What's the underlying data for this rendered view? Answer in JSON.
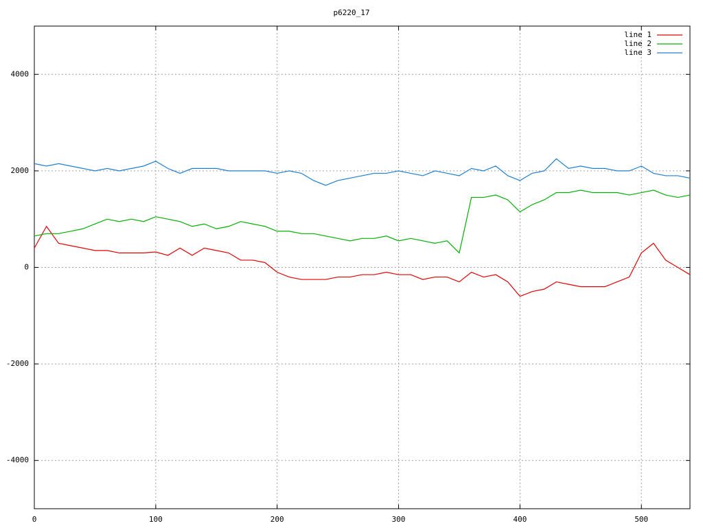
{
  "chart_data": {
    "type": "line",
    "title": "p6220_17",
    "x": [
      0,
      10,
      20,
      30,
      40,
      50,
      60,
      70,
      80,
      90,
      100,
      110,
      120,
      130,
      140,
      150,
      160,
      170,
      180,
      190,
      200,
      210,
      220,
      230,
      240,
      250,
      260,
      270,
      280,
      290,
      300,
      310,
      320,
      330,
      340,
      350,
      360,
      370,
      380,
      390,
      400,
      410,
      420,
      430,
      440,
      450,
      460,
      470,
      480,
      490,
      500,
      510,
      520,
      530,
      540
    ],
    "series": [
      {
        "name": "line 1",
        "color": "#e00000",
        "values": [
          400,
          850,
          500,
          450,
          400,
          350,
          350,
          300,
          300,
          300,
          320,
          250,
          400,
          250,
          400,
          350,
          300,
          150,
          150,
          100,
          -100,
          -200,
          -250,
          -250,
          -250,
          -200,
          -200,
          -150,
          -150,
          -100,
          -150,
          -150,
          -250,
          -200,
          -200,
          -300,
          -100,
          -200,
          -150,
          -300,
          -600,
          -500,
          -450,
          -300,
          -350,
          -400,
          -400,
          -400,
          -300,
          -200,
          300,
          500,
          150,
          0,
          -150
        ]
      },
      {
        "name": "line 2",
        "color": "#00b000",
        "values": [
          650,
          700,
          700,
          750,
          800,
          900,
          1000,
          950,
          1000,
          950,
          1050,
          1000,
          950,
          850,
          900,
          800,
          850,
          950,
          900,
          850,
          750,
          750,
          700,
          700,
          650,
          600,
          550,
          600,
          600,
          650,
          550,
          600,
          550,
          500,
          550,
          300,
          1450,
          1450,
          1500,
          1400,
          1150,
          1300,
          1400,
          1550,
          1550,
          1600,
          1550,
          1550,
          1550,
          1500,
          1550,
          1600,
          1500,
          1450,
          1500
        ]
      },
      {
        "name": "line 3",
        "color": "#1e7fd0",
        "values": [
          2150,
          2100,
          2150,
          2100,
          2050,
          2000,
          2050,
          2000,
          2050,
          2100,
          2200,
          2050,
          1950,
          2050,
          2050,
          2050,
          2000,
          2000,
          2000,
          2000,
          1950,
          2000,
          1950,
          1800,
          1700,
          1800,
          1850,
          1900,
          1950,
          1950,
          2000,
          1950,
          1900,
          2000,
          1950,
          1900,
          2050,
          2000,
          2100,
          1900,
          1800,
          1950,
          2000,
          2250,
          2050,
          2100,
          2050,
          2050,
          2000,
          2000,
          2100,
          1950,
          1900,
          1900,
          1850
        ]
      }
    ],
    "xlim": [
      0,
      540
    ],
    "xticks": [
      0,
      100,
      200,
      300,
      400,
      500
    ],
    "ylim": [
      -5000,
      5000
    ],
    "yticks": [
      -4000,
      -2000,
      0,
      2000,
      4000
    ],
    "grid": true,
    "legend": "top-right"
  }
}
